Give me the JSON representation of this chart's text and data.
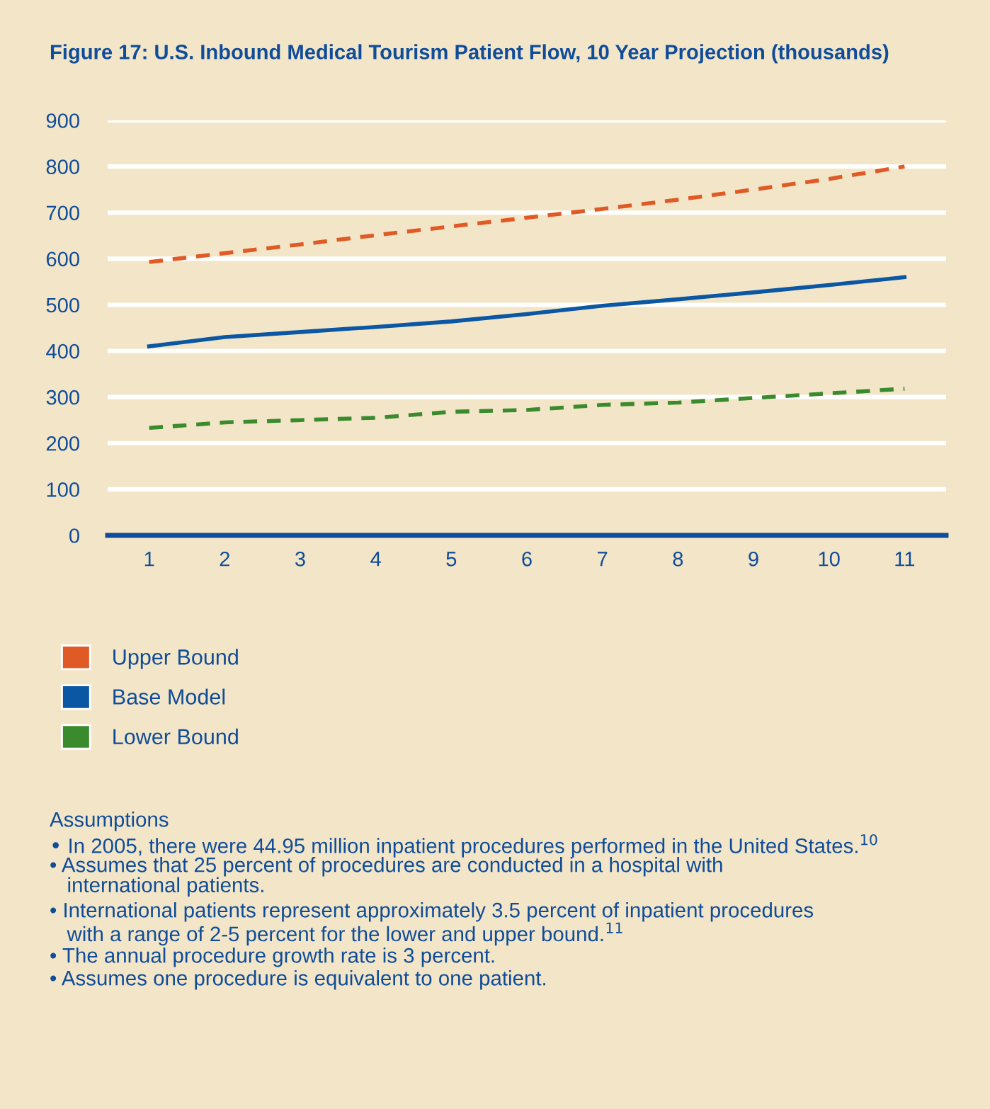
{
  "chart_data": {
    "type": "line",
    "title": "Figure 17: U.S. Inbound Medical Tourism Patient Flow, 10 Year Projection (thousands)",
    "categories": [
      "1",
      "2",
      "3",
      "4",
      "5",
      "6",
      "7",
      "8",
      "9",
      "10",
      "11"
    ],
    "series": [
      {
        "name": "Upper Bound",
        "color": "#e05a26",
        "line_style": "dashed",
        "values": [
          593,
          612,
          631,
          651,
          670,
          689,
          708,
          728,
          750,
          773,
          800
        ]
      },
      {
        "name": "Base Model",
        "color": "#0b57a4",
        "line_style": "solid",
        "values": [
          410,
          430,
          441,
          452,
          464,
          480,
          498,
          512,
          527,
          543,
          560
        ]
      },
      {
        "name": "Lower Bound",
        "color": "#3a8a2e",
        "line_style": "dashed",
        "values": [
          233,
          245,
          250,
          255,
          268,
          272,
          283,
          288,
          298,
          308,
          318
        ]
      }
    ],
    "ylim": [
      0,
      900
    ],
    "yticks": [
      0,
      100,
      200,
      300,
      400,
      500,
      600,
      700,
      800,
      900
    ],
    "grid": "y",
    "legend": "bottom left",
    "marker": "none",
    "annotations": [
      "Assumptions",
      "• In 2005, there were 44.95 million inpatient procedures performed in the United States.$^{10}$",
      "• Assumes that 25 percent of procedures are conducted in a hospital with\n   international patients.",
      "• International patients represent approximately 3.5 percent of inpatient procedures\n   with a range of 2-5 percent for the lower and upper bound.$^{11}$",
      "• The annual procedure growth rate is 3 percent.",
      "• Assumes one procedure is equivalent to one patient."
    ]
  }
}
